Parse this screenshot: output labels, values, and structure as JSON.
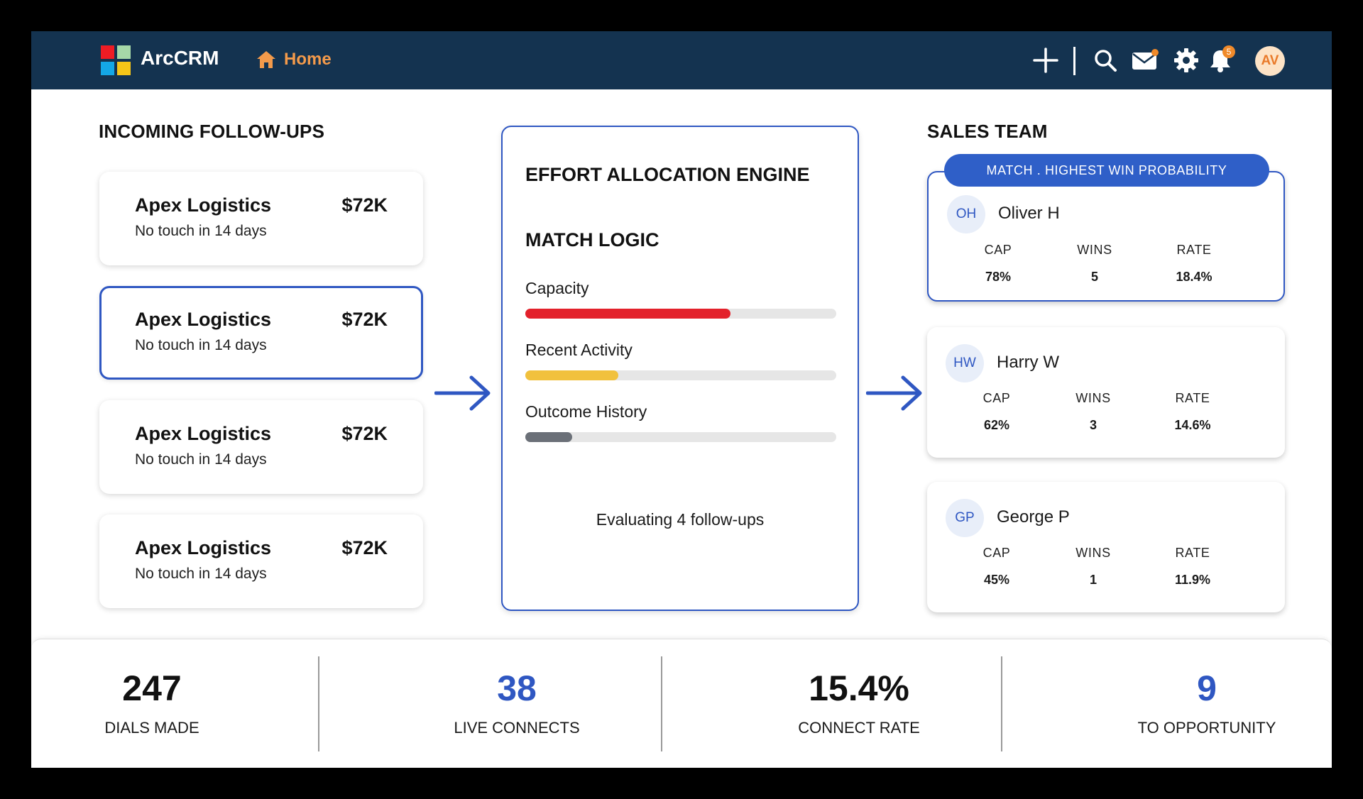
{
  "app": {
    "brand": "ArcCRM",
    "nav_home": "Home",
    "notification_count": "5",
    "user_initials": "AV",
    "logo_colors": [
      "#ee1c24",
      "#a6d8a8",
      "#14a7e6",
      "#f5c518"
    ],
    "accent_color": "#2f57c2",
    "topbar_color": "#143350",
    "icons": [
      "home-icon",
      "plus-icon",
      "search-icon",
      "mail-icon",
      "gear-icon",
      "bell-icon"
    ]
  },
  "followups": {
    "title": "INCOMING FOLLOW-UPS",
    "items": [
      {
        "name": "Apex Logistics",
        "amount": "$72K",
        "status": "No touch in 14 days",
        "selected": false
      },
      {
        "name": "Apex Logistics",
        "amount": "$72K",
        "status": "No touch in 14 days",
        "selected": true
      },
      {
        "name": "Apex Logistics",
        "amount": "$72K",
        "status": "No touch in 14 days",
        "selected": false
      },
      {
        "name": "Apex Logistics",
        "amount": "$72K",
        "status": "No touch in 14 days",
        "selected": false
      }
    ]
  },
  "engine": {
    "title": "EFFORT ALLOCATION ENGINE",
    "match_title": "MATCH LOGIC",
    "metrics": [
      {
        "label": "Capacity",
        "level": 0.66,
        "color": "#e3212b"
      },
      {
        "label": "Recent Activity",
        "level": 0.3,
        "color": "#f1c13d"
      },
      {
        "label": "Outcome History",
        "level": 0.15,
        "color": "#6b7078"
      }
    ],
    "status": "Evaluating 4 follow-ups"
  },
  "team": {
    "title": "SALES TEAM",
    "match_badge": "MATCH . HIGHEST WIN PROBABILITY",
    "stat_labels": {
      "cap": "CAP",
      "wins": "WINS",
      "rate": "RATE"
    },
    "reps": [
      {
        "initials": "OH",
        "name": "Oliver H",
        "cap": "78%",
        "wins": "5",
        "rate": "18.4%",
        "selected": true
      },
      {
        "initials": "HW",
        "name": "Harry W",
        "cap": "62%",
        "wins": "3",
        "rate": "14.6%",
        "selected": false
      },
      {
        "initials": "GP",
        "name": "George P",
        "cap": "45%",
        "wins": "1",
        "rate": "11.9%",
        "selected": false
      }
    ]
  },
  "kpis": [
    {
      "value": "247",
      "label": "DIALS MADE",
      "color": "#111111"
    },
    {
      "value": "38",
      "label": "LIVE CONNECTS",
      "color": "#2f57c2"
    },
    {
      "value": "15.4%",
      "label": "CONNECT RATE",
      "color": "#111111"
    },
    {
      "value": "9",
      "label": "TO OPPORTUNITY",
      "color": "#2f57c2"
    }
  ]
}
